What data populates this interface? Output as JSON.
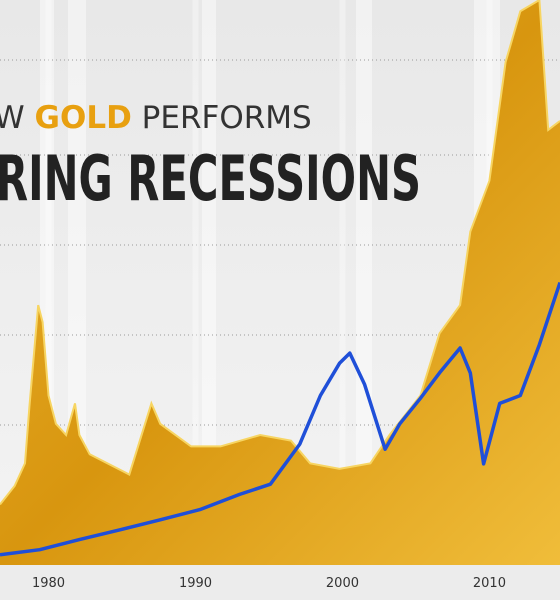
{
  "chart_data": {
    "type": "line",
    "title_parts": [
      "W",
      "GOLD",
      "PERFORMS"
    ],
    "subtitle": "RING RECESSIONS",
    "xlim": [
      1976.7,
      2014.8
    ],
    "xticks": [
      1980,
      1990,
      2000,
      2010
    ],
    "ylim": [
      0,
      100
    ],
    "series": [
      {
        "color": "#e2a21c",
        "fill": true,
        "x": [
          1976.7,
          1977.7,
          1978.4,
          1978.7,
          1979.3,
          1979.6,
          1980.0,
          1980.5,
          1981.2,
          1981.8,
          1982.1,
          1982.8,
          1985.5,
          1987.0,
          1987.6,
          1989.7,
          1991.7,
          1994.4,
          1996.5,
          1997.8,
          1999.8,
          2001.9,
          2003.2,
          2005.3,
          2006.6,
          2008.0,
          2008.7,
          2010.0,
          2011.1,
          2012.1,
          2013.4,
          2014.0,
          2014.8
        ],
        "values": [
          10.7,
          14,
          18,
          28,
          46,
          43,
          30,
          25,
          23,
          28.6,
          23,
          19.6,
          16,
          28.6,
          25,
          21,
          21,
          23,
          22,
          18,
          17,
          18,
          23,
          30,
          41,
          46,
          59,
          68,
          89,
          98,
          100,
          77,
          78.6
        ]
      },
      {
        "color": "#1f4fd8",
        "fill": false,
        "x": [
          1976.7,
          1979.4,
          1982.1,
          1984.9,
          1987.6,
          1990.3,
          1993.0,
          1995.1,
          1997.1,
          1998.5,
          1999.8,
          2000.5,
          2001.5,
          2002.9,
          2003.9,
          2005.3,
          2006.6,
          2008.0,
          2008.7,
          2009.6,
          2010.7,
          2012.1,
          2013.4,
          2014.8
        ],
        "values": [
          1.8,
          2.7,
          4.5,
          6.25,
          8,
          9.8,
          12.5,
          14.3,
          21.4,
          30,
          35.7,
          37.5,
          32,
          20.5,
          25,
          29.5,
          34,
          38.4,
          34,
          17.9,
          28.6,
          30,
          39,
          50
        ]
      }
    ]
  }
}
